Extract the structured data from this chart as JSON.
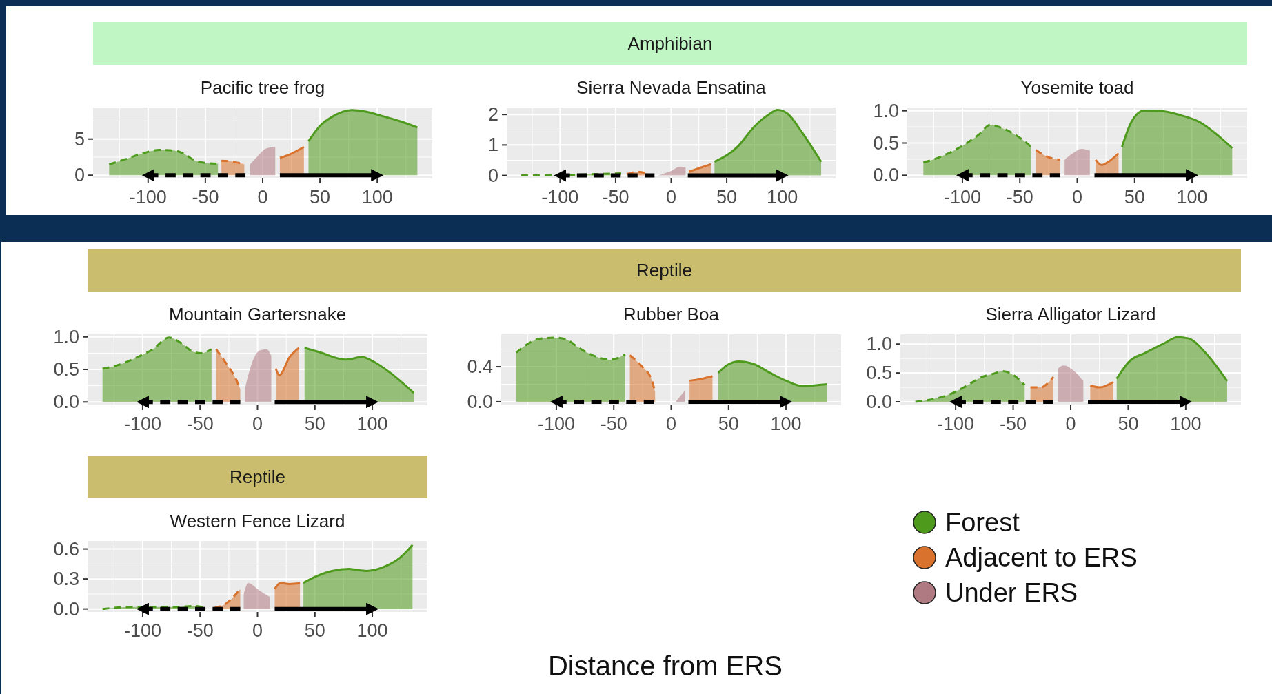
{
  "chart_data": [
    {
      "type": "area",
      "title": "Pacific tree frog",
      "annotations": [
        "Amphibian"
      ],
      "xlim": [
        -148,
        148
      ],
      "xticks": [
        -100,
        -50,
        0,
        50,
        100
      ],
      "ylim": [
        -0.45,
        9.35
      ],
      "yticks": [
        0,
        5
      ],
      "grid": true,
      "series": [
        {
          "color": "#4e9a1c",
          "line_style": "dashed",
          "x": [
            -134,
            -120,
            -105,
            -90,
            -77,
            -68,
            -60,
            -50,
            -39
          ],
          "values": [
            1.5,
            2.2,
            3.0,
            3.5,
            3.4,
            2.9,
            2.1,
            1.7,
            1.6
          ]
        },
        {
          "color": "#d8722c",
          "line_style": "dashed",
          "x": [
            -36,
            -27,
            -16
          ],
          "values": [
            2.0,
            1.9,
            1.5
          ]
        },
        {
          "color": "#b07a82",
          "x": [
            -11,
            -4,
            3,
            11
          ],
          "values": [
            1.5,
            2.7,
            3.7,
            3.9
          ]
        },
        {
          "color": "#d8722c",
          "line_style": "solid",
          "x": [
            15,
            24,
            36
          ],
          "values": [
            2.4,
            2.9,
            3.9
          ]
        },
        {
          "color": "#4e9a1c",
          "line_style": "solid",
          "x": [
            40,
            50,
            61,
            78,
            89,
            106,
            121,
            135
          ],
          "values": [
            4.7,
            6.8,
            8.1,
            9.0,
            8.8,
            8.1,
            7.4,
            6.6
          ]
        },
        {
          "type": "line",
          "color": "#000000",
          "line_style": "dashed",
          "x": [
            -100,
            -15
          ],
          "values": [
            0,
            0
          ]
        },
        {
          "type": "line",
          "color": "#000000",
          "line_style": "solid",
          "x": [
            15,
            100
          ],
          "values": [
            0,
            0
          ]
        }
      ]
    },
    {
      "type": "area",
      "title": "Sierra Nevada Ensatina",
      "xlim": [
        -148,
        148
      ],
      "xticks": [
        -100,
        -50,
        0,
        50,
        100
      ],
      "ylim": [
        -0.1,
        2.23
      ],
      "yticks": [
        0,
        1,
        2
      ],
      "grid": true,
      "series": [
        {
          "color": "#4e9a1c",
          "line_style": "dashed",
          "x": [
            -135,
            -110,
            -80,
            -55,
            -45
          ],
          "values": [
            0,
            0.01,
            0.03,
            0.06,
            0.07
          ]
        },
        {
          "color": "#d8722c",
          "line_style": "dashed",
          "x": [
            -40,
            -30,
            -20
          ],
          "values": [
            0.05,
            0.12,
            0.05
          ]
        },
        {
          "color": "#b07a82",
          "x": [
            -12,
            0,
            8,
            13
          ],
          "values": [
            0,
            0.15,
            0.29,
            0.25
          ]
        },
        {
          "color": "#d8722c",
          "line_style": "solid",
          "x": [
            16,
            30,
            36
          ],
          "values": [
            0.12,
            0.3,
            0.37
          ]
        },
        {
          "color": "#4e9a1c",
          "line_style": "solid",
          "x": [
            39,
            60,
            74,
            87,
            96,
            105,
            118,
            135
          ],
          "values": [
            0.45,
            0.95,
            1.57,
            1.98,
            2.15,
            2.02,
            1.4,
            0.45
          ]
        },
        {
          "type": "line",
          "color": "#000000",
          "line_style": "dashed",
          "x": [
            -100,
            -15
          ],
          "values": [
            0,
            0
          ]
        },
        {
          "type": "line",
          "color": "#000000",
          "line_style": "solid",
          "x": [
            15,
            100
          ],
          "values": [
            0,
            0
          ]
        }
      ]
    },
    {
      "type": "area",
      "title": "Yosemite toad",
      "xlim": [
        -148,
        148
      ],
      "xticks": [
        -100,
        -50,
        0,
        50,
        100
      ],
      "ylim": [
        -0.05,
        1.05
      ],
      "yticks": [
        {
          "value": 0,
          "label": "0.0"
        },
        {
          "value": 0.5,
          "label": "0.5"
        },
        {
          "value": 1,
          "label": "1.0"
        }
      ],
      "grid": true,
      "series": [
        {
          "color": "#4e9a1c",
          "line_style": "dashed",
          "x": [
            -134,
            -126,
            -110,
            -96,
            -85,
            -76,
            -64,
            -50,
            -40
          ],
          "values": [
            0.2,
            0.24,
            0.36,
            0.5,
            0.64,
            0.78,
            0.72,
            0.58,
            0.44
          ]
        },
        {
          "color": "#d8722c",
          "line_style": "dashed",
          "x": [
            -36,
            -25,
            -15
          ],
          "values": [
            0.39,
            0.28,
            0.24
          ]
        },
        {
          "color": "#b07a82",
          "x": [
            -11,
            -4,
            4,
            11
          ],
          "values": [
            0.24,
            0.34,
            0.41,
            0.38
          ]
        },
        {
          "color": "#d8722c",
          "line_style": "solid",
          "x": [
            16,
            21,
            28,
            36
          ],
          "values": [
            0.24,
            0.16,
            0.22,
            0.34
          ]
        },
        {
          "color": "#4e9a1c",
          "line_style": "solid",
          "x": [
            39,
            47,
            58,
            75,
            88,
            107,
            121,
            135
          ],
          "values": [
            0.44,
            0.82,
            1.0,
            0.99,
            0.94,
            0.82,
            0.64,
            0.42
          ]
        },
        {
          "type": "line",
          "color": "#000000",
          "line_style": "dashed",
          "x": [
            -100,
            -15
          ],
          "values": [
            0,
            0
          ]
        },
        {
          "type": "line",
          "color": "#000000",
          "line_style": "solid",
          "x": [
            15,
            100
          ],
          "values": [
            0,
            0
          ]
        }
      ]
    },
    {
      "type": "area",
      "title": "Mountain Gartersnake",
      "annotations": [
        "Reptile"
      ],
      "xlim": [
        -148,
        148
      ],
      "xticks": [
        -100,
        -50,
        0,
        50,
        100
      ],
      "ylim": [
        -0.05,
        1.04
      ],
      "yticks": [
        {
          "value": 0,
          "label": "0.0"
        },
        {
          "value": 0.5,
          "label": "0.5"
        },
        {
          "value": 1,
          "label": "1.0"
        }
      ],
      "grid": true,
      "series": [
        {
          "color": "#4e9a1c",
          "line_style": "dashed",
          "x": [
            -135,
            -121,
            -102,
            -91,
            -77,
            -67,
            -56,
            -49,
            -40
          ],
          "values": [
            0.51,
            0.57,
            0.71,
            0.81,
            0.99,
            0.91,
            0.77,
            0.75,
            0.81
          ]
        },
        {
          "color": "#d8722c",
          "line_style": "dashed",
          "x": [
            -36,
            -28,
            -19,
            -15
          ],
          "values": [
            0.81,
            0.61,
            0.36,
            0.2
          ]
        },
        {
          "color": "#b07a82",
          "x": [
            -11,
            -5,
            2,
            8,
            12
          ],
          "values": [
            0.2,
            0.59,
            0.79,
            0.81,
            0.71
          ]
        },
        {
          "color": "#d8722c",
          "line_style": "solid",
          "x": [
            16,
            19,
            28,
            36
          ],
          "values": [
            0.51,
            0.41,
            0.69,
            0.83
          ]
        },
        {
          "color": "#4e9a1c",
          "line_style": "solid",
          "x": [
            41,
            53,
            77,
            91,
            100,
            114,
            136
          ],
          "values": [
            0.83,
            0.77,
            0.65,
            0.69,
            0.63,
            0.47,
            0.14
          ]
        },
        {
          "type": "line",
          "color": "#000000",
          "line_style": "dashed",
          "x": [
            -100,
            -15
          ],
          "values": [
            0,
            0
          ]
        },
        {
          "type": "line",
          "color": "#000000",
          "line_style": "solid",
          "x": [
            15,
            100
          ],
          "values": [
            0,
            0
          ]
        }
      ]
    },
    {
      "type": "area",
      "title": "Rubber Boa",
      "xlim": [
        -148,
        148
      ],
      "xticks": [
        -100,
        -50,
        0,
        50,
        100
      ],
      "ylim": [
        -0.04,
        0.77
      ],
      "yticks": [
        {
          "value": 0,
          "label": "0.0"
        },
        {
          "value": 0.4,
          "label": "0.4"
        }
      ],
      "grid": true,
      "series": [
        {
          "color": "#4e9a1c",
          "line_style": "dashed",
          "x": [
            -135,
            -126,
            -114,
            -100,
            -91,
            -81,
            -70,
            -53,
            -40
          ],
          "values": [
            0.56,
            0.65,
            0.72,
            0.73,
            0.71,
            0.62,
            0.54,
            0.48,
            0.54
          ]
        },
        {
          "color": "#d8722c",
          "line_style": "dashed",
          "x": [
            -36,
            -26,
            -17,
            -14
          ],
          "values": [
            0.53,
            0.41,
            0.25,
            0.11
          ]
        },
        {
          "color": "#b07a82",
          "x": [
            4,
            12
          ],
          "values": [
            0,
            0.13
          ]
        },
        {
          "color": "#d8722c",
          "line_style": "solid",
          "x": [
            16,
            26,
            36
          ],
          "values": [
            0.24,
            0.26,
            0.29
          ]
        },
        {
          "color": "#4e9a1c",
          "line_style": "solid",
          "x": [
            41,
            49,
            59,
            72,
            86,
            100,
            114,
            136
          ],
          "values": [
            0.33,
            0.42,
            0.46,
            0.43,
            0.33,
            0.24,
            0.18,
            0.2
          ]
        },
        {
          "type": "line",
          "color": "#000000",
          "line_style": "dashed",
          "x": [
            -100,
            -15
          ],
          "values": [
            0,
            0
          ]
        },
        {
          "type": "line",
          "color": "#000000",
          "line_style": "solid",
          "x": [
            15,
            100
          ],
          "values": [
            0,
            0
          ]
        }
      ]
    },
    {
      "type": "area",
      "title": "Sierra Alligator Lizard",
      "xlim": [
        -148,
        148
      ],
      "xticks": [
        -100,
        -50,
        0,
        50,
        100
      ],
      "ylim": [
        -0.06,
        1.17
      ],
      "yticks": [
        {
          "value": 0,
          "label": "0.0"
        },
        {
          "value": 0.5,
          "label": "0.5"
        },
        {
          "value": 1,
          "label": "1.0"
        }
      ],
      "grid": true,
      "series": [
        {
          "color": "#4e9a1c",
          "line_style": "dashed",
          "x": [
            -135,
            -121,
            -105,
            -91,
            -77,
            -68,
            -59,
            -52,
            -40
          ],
          "values": [
            0,
            0.04,
            0.13,
            0.27,
            0.43,
            0.48,
            0.53,
            0.49,
            0.29
          ]
        },
        {
          "color": "#d8722c",
          "line_style": "dashed",
          "x": [
            -35,
            -26,
            -19,
            -15
          ],
          "values": [
            0.25,
            0.25,
            0.34,
            0.43
          ]
        },
        {
          "color": "#b07a82",
          "x": [
            -11,
            -6,
            2,
            11
          ],
          "values": [
            0.58,
            0.63,
            0.55,
            0.36
          ]
        },
        {
          "color": "#d8722c",
          "line_style": "solid",
          "x": [
            17,
            25,
            37
          ],
          "values": [
            0.28,
            0.25,
            0.34
          ]
        },
        {
          "color": "#4e9a1c",
          "line_style": "solid",
          "x": [
            40,
            51,
            65,
            81,
            93,
            102,
            118,
            136
          ],
          "values": [
            0.4,
            0.7,
            0.85,
            1.01,
            1.12,
            1.1,
            0.83,
            0.36
          ]
        },
        {
          "type": "line",
          "color": "#000000",
          "line_style": "dashed",
          "x": [
            -100,
            -15
          ],
          "values": [
            0,
            0
          ]
        },
        {
          "type": "line",
          "color": "#000000",
          "line_style": "solid",
          "x": [
            15,
            100
          ],
          "values": [
            0,
            0
          ]
        }
      ]
    },
    {
      "type": "area",
      "title": "Western Fence Lizard",
      "annotations": [
        "Reptile"
      ],
      "xlabel": "Distance from ERS",
      "legend": "right",
      "xlim": [
        -148,
        148
      ],
      "xticks": [
        -100,
        -50,
        0,
        50,
        100
      ],
      "ylim": [
        -0.03,
        0.68
      ],
      "yticks": [
        {
          "value": 0,
          "label": "0.0"
        },
        {
          "value": 0.3,
          "label": "0.3"
        },
        {
          "value": 0.6,
          "label": "0.6"
        }
      ],
      "grid": true,
      "series": [
        {
          "name": "Forest",
          "color": "#4e9a1c",
          "line_style": "dashed",
          "x": [
            -135,
            -110,
            -90,
            -70,
            -55,
            -45
          ],
          "values": [
            0,
            0.02,
            0.02,
            0.02,
            0.03,
            0.01
          ]
        },
        {
          "name": "Adjacent to ERS",
          "color": "#d8722c",
          "line_style": "dashed",
          "x": [
            -38,
            -28,
            -15
          ],
          "values": [
            0.01,
            0.05,
            0.2
          ]
        },
        {
          "name": "Under ERS",
          "color": "#b07a82",
          "x": [
            -12,
            -8,
            0,
            5,
            11
          ],
          "values": [
            0.15,
            0.26,
            0.2,
            0.16,
            0.12
          ]
        },
        {
          "color": "#d8722c",
          "line_style": "solid",
          "x": [
            15,
            20,
            28,
            37
          ],
          "values": [
            0.2,
            0.26,
            0.25,
            0.26
          ]
        },
        {
          "color": "#4e9a1c",
          "line_style": "solid",
          "x": [
            40,
            50,
            65,
            80,
            95,
            110,
            125,
            135
          ],
          "values": [
            0.26,
            0.32,
            0.38,
            0.4,
            0.38,
            0.42,
            0.52,
            0.64
          ]
        },
        {
          "type": "line",
          "color": "#000000",
          "line_style": "dashed",
          "x": [
            -100,
            -15
          ],
          "values": [
            0,
            0
          ]
        },
        {
          "type": "line",
          "color": "#000000",
          "line_style": "solid",
          "x": [
            15,
            100
          ],
          "values": [
            0,
            0
          ]
        }
      ]
    }
  ]
}
